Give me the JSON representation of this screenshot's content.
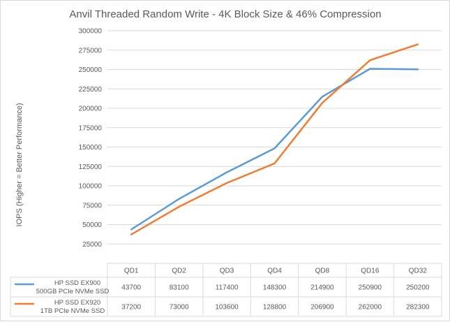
{
  "chart_data": {
    "type": "line",
    "title": "Anvil Threaded Random Write - 4K Block Size & 46% Compression",
    "ylabel": "IOPS (Higher = Better Performance)",
    "xlabel": "",
    "ylim": [
      0,
      300000
    ],
    "y_ticks": [
      25000,
      50000,
      75000,
      100000,
      125000,
      150000,
      175000,
      200000,
      225000,
      250000,
      275000,
      300000
    ],
    "categories": [
      "QD1",
      "QD2",
      "QD3",
      "QD4",
      "QD8",
      "QD16",
      "QD32"
    ],
    "grid": true,
    "legend": "data-table",
    "series": [
      {
        "name_lines": [
          "HP SSD EX900",
          "500GB PCIe NVMe SSD"
        ],
        "color": "#5b9bd5",
        "values": [
          43700,
          83100,
          117400,
          148300,
          214900,
          250900,
          250200
        ]
      },
      {
        "name_lines": [
          "HP SSD EX920",
          "1TB PCIe NVMe SSD"
        ],
        "color": "#ed7d31",
        "values": [
          37200,
          73000,
          103600,
          128800,
          206900,
          262000,
          282300
        ]
      }
    ]
  }
}
